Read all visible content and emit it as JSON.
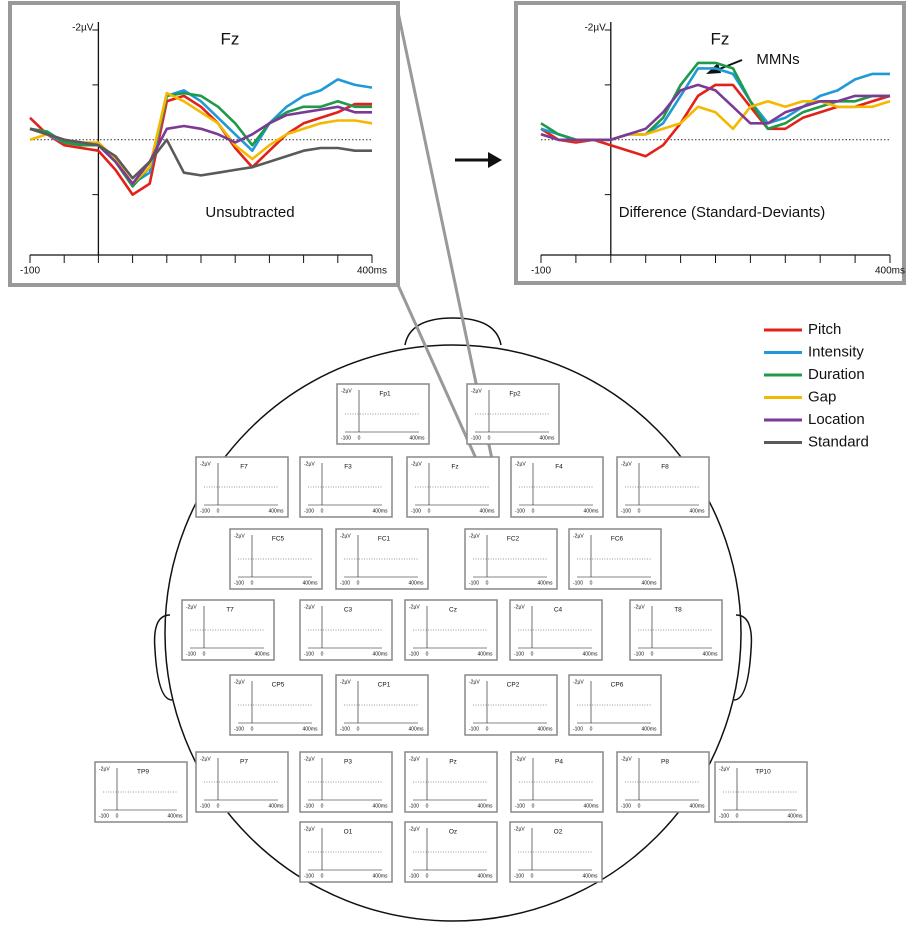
{
  "chart_data": [
    {
      "type": "line",
      "title": "Fz",
      "annotation": "Unsubtracted",
      "x": [
        -100,
        -75,
        -50,
        -25,
        0,
        25,
        50,
        75,
        100,
        125,
        150,
        175,
        200,
        225,
        250,
        275,
        300,
        325,
        350,
        375,
        400
      ],
      "xlim": [
        -100,
        400
      ],
      "xticks": [
        {
          "value": -100,
          "label": "-100"
        },
        {
          "value": 400,
          "label": "400ms"
        }
      ],
      "xminor": [
        -50,
        0,
        50,
        100,
        150,
        200,
        250,
        300,
        350
      ],
      "ylim": [
        -2,
        2.1
      ],
      "inverted": true,
      "yticks": [
        {
          "value": -2,
          "label": "-2µV"
        }
      ],
      "yminor": [
        -1,
        1
      ],
      "zero_line": true,
      "series": [
        {
          "name": "Pitch",
          "color": "#e32119",
          "values": [
            -0.4,
            -0.1,
            0.1,
            0.15,
            0.2,
            0.55,
            1.0,
            0.8,
            -0.7,
            -0.8,
            -0.6,
            -0.3,
            0.15,
            0.5,
            0.2,
            -0.1,
            -0.3,
            -0.4,
            -0.5,
            -0.65,
            -0.65
          ]
        },
        {
          "name": "Intensity",
          "color": "#1f9ad6",
          "values": [
            -0.2,
            -0.1,
            0.05,
            0.1,
            0.1,
            0.4,
            0.8,
            0.6,
            -0.8,
            -0.9,
            -0.7,
            -0.4,
            -0.1,
            0.2,
            -0.3,
            -0.6,
            -0.8,
            -0.9,
            -1.1,
            -1.0,
            -0.95
          ]
        },
        {
          "name": "Duration",
          "color": "#1e9a4a",
          "values": [
            -0.2,
            -0.15,
            0.05,
            0.1,
            0.1,
            0.4,
            0.85,
            0.5,
            -0.8,
            -0.85,
            -0.8,
            -0.6,
            -0.3,
            0.1,
            -0.3,
            -0.5,
            -0.6,
            -0.6,
            -0.7,
            -0.6,
            -0.6
          ]
        },
        {
          "name": "Gap",
          "color": "#f5b800",
          "values": [
            0,
            -0.1,
            0,
            0.05,
            0.05,
            0.35,
            0.8,
            0.5,
            -0.85,
            -0.7,
            -0.5,
            -0.3,
            0.1,
            0.35,
            0.1,
            -0.1,
            -0.2,
            -0.3,
            -0.35,
            -0.35,
            -0.3
          ]
        },
        {
          "name": "Location",
          "color": "#7b3a96",
          "values": [
            -0.2,
            -0.1,
            0,
            0.05,
            0.1,
            0.4,
            0.8,
            0.4,
            -0.2,
            -0.25,
            -0.2,
            -0.1,
            0.05,
            -0.1,
            -0.3,
            -0.45,
            -0.5,
            -0.55,
            -0.6,
            -0.5,
            -0.5
          ]
        },
        {
          "name": "Standard",
          "color": "#5a5a5a",
          "values": [
            -0.2,
            -0.1,
            0,
            0.05,
            0.1,
            0.3,
            0.7,
            0.4,
            0,
            0.6,
            0.65,
            0.6,
            0.55,
            0.5,
            0.4,
            0.3,
            0.2,
            0.15,
            0.15,
            0.2,
            0.2
          ]
        }
      ]
    },
    {
      "type": "line",
      "title": "Fz",
      "annotation": "Difference (Standard-Deviants)",
      "callout": "MMNs",
      "x": [
        -100,
        -75,
        -50,
        -25,
        0,
        25,
        50,
        75,
        100,
        125,
        150,
        175,
        200,
        225,
        250,
        275,
        300,
        325,
        350,
        375,
        400
      ],
      "xlim": [
        -100,
        400
      ],
      "xticks": [
        {
          "value": -100,
          "label": "-100"
        },
        {
          "value": 400,
          "label": "400ms"
        }
      ],
      "xminor": [
        -50,
        0,
        50,
        100,
        150,
        200,
        250,
        300,
        350
      ],
      "ylim": [
        -2,
        2.1
      ],
      "inverted": true,
      "yticks": [
        {
          "value": -2,
          "label": "-2µV"
        }
      ],
      "yminor": [
        -1,
        1
      ],
      "zero_line": true,
      "series": [
        {
          "name": "Pitch",
          "color": "#e32119",
          "values": [
            -0.2,
            0,
            0.05,
            0,
            0.1,
            0.2,
            0.3,
            0.1,
            -0.3,
            -0.8,
            -1.0,
            -1.0,
            -0.6,
            -0.2,
            -0.2,
            -0.4,
            -0.5,
            -0.6,
            -0.6,
            -0.7,
            -0.8
          ]
        },
        {
          "name": "Intensity",
          "color": "#1f9ad6",
          "values": [
            -0.2,
            -0.1,
            0,
            0,
            0,
            -0.1,
            -0.1,
            -0.3,
            -0.8,
            -1.3,
            -1.3,
            -1.2,
            -0.7,
            -0.3,
            -0.4,
            -0.6,
            -0.8,
            -0.9,
            -1.1,
            -1.2,
            -1.2
          ]
        },
        {
          "name": "Duration",
          "color": "#1e9a4a",
          "values": [
            -0.3,
            -0.1,
            0,
            0,
            0,
            -0.1,
            -0.1,
            -0.4,
            -1.0,
            -1.4,
            -1.4,
            -1.3,
            -0.7,
            -0.2,
            -0.3,
            -0.5,
            -0.6,
            -0.7,
            -0.7,
            -0.8,
            -0.8
          ]
        },
        {
          "name": "Gap",
          "color": "#f5b800",
          "values": [
            -0.1,
            0,
            0,
            0,
            0,
            -0.1,
            -0.1,
            -0.2,
            -0.3,
            -0.6,
            -0.5,
            -0.2,
            -0.6,
            -0.7,
            -0.6,
            -0.7,
            -0.7,
            -0.6,
            -0.6,
            -0.6,
            -0.7
          ]
        },
        {
          "name": "Location",
          "color": "#7b3a96",
          "values": [
            -0.1,
            0,
            0,
            0,
            0,
            -0.1,
            -0.2,
            -0.5,
            -0.9,
            -1.0,
            -0.9,
            -0.6,
            -0.3,
            -0.3,
            -0.5,
            -0.6,
            -0.7,
            -0.7,
            -0.8,
            -0.8,
            -0.8
          ]
        }
      ]
    }
  ],
  "head_map": {
    "tick_labels": [
      "-2µV",
      "-100",
      "0",
      "400ms"
    ],
    "rows": [
      [
        "Fp1",
        "Fp2"
      ],
      [
        "F7",
        "F3",
        "Fz",
        "F4",
        "F8"
      ],
      [
        "FC5",
        "FC1",
        "FC2",
        "FC6"
      ],
      [
        "T7",
        "C3",
        "Cz",
        "C4",
        "T8"
      ],
      [
        "CP5",
        "CP1",
        "CP2",
        "CP6"
      ],
      [
        "TP9",
        "P7",
        "P3",
        "Pz",
        "P4",
        "P8",
        "TP10"
      ],
      [
        "O1",
        "Oz",
        "O2"
      ]
    ]
  }
}
